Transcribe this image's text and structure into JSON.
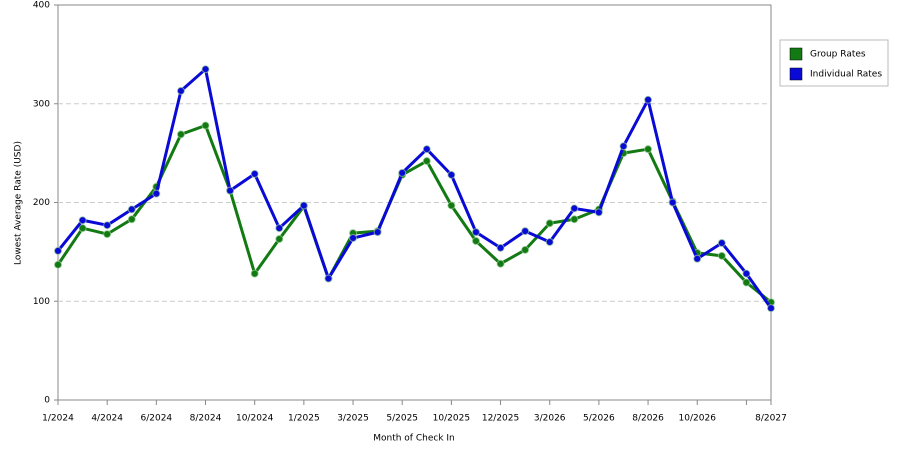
{
  "chart_data": {
    "type": "line",
    "x_label": "Month of Check In",
    "y_label": "Lowest Average Rate (USD)",
    "categories": [
      "1/2024",
      null,
      "4/2024",
      null,
      "6/2024",
      null,
      "8/2024",
      null,
      "10/2024",
      null,
      "1/2025",
      null,
      "3/2025",
      null,
      "5/2025",
      null,
      "10/2025",
      null,
      "12/2025",
      null,
      "3/2026",
      null,
      "5/2026",
      null,
      "8/2026",
      null,
      "10/2026",
      null,
      null,
      "8/2027"
    ],
    "series": [
      {
        "name": "Group Rates",
        "color": "#137a13",
        "values": [
          137,
          174,
          168,
          183,
          216,
          269,
          278,
          212,
          128,
          163,
          196,
          123,
          169,
          171,
          228,
          242,
          197,
          161,
          138,
          152,
          179,
          183,
          193,
          250,
          254,
          201,
          149,
          146,
          119,
          99
        ]
      },
      {
        "name": "Individual Rates",
        "color": "#0a0ad6",
        "values": [
          151,
          182,
          177,
          193,
          209,
          313,
          335,
          212,
          229,
          174,
          197,
          123,
          164,
          170,
          230,
          254,
          228,
          170,
          154,
          171,
          160,
          194,
          190,
          257,
          304,
          200,
          143,
          159,
          128,
          93
        ]
      }
    ],
    "ylim": [
      0,
      400
    ],
    "yticks": [
      0,
      100,
      200,
      300,
      400
    ],
    "grid": true,
    "legend": "right"
  }
}
